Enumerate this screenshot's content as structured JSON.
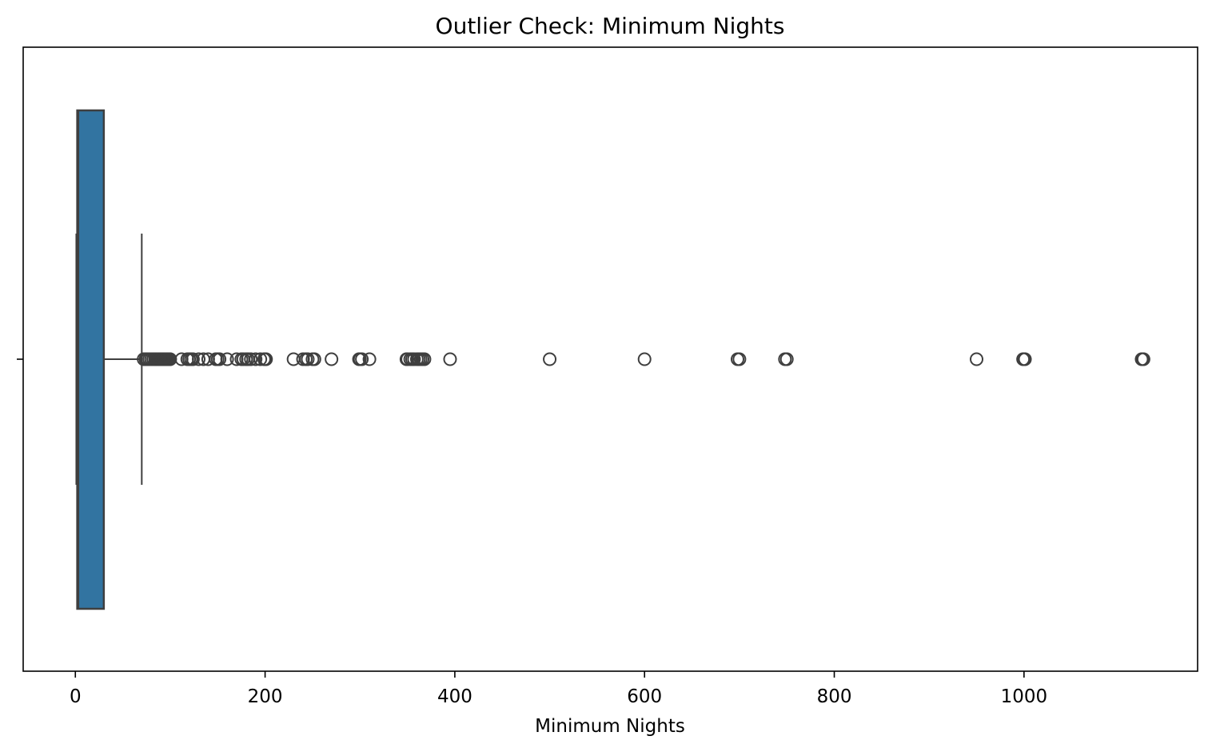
{
  "chart_data": {
    "type": "box",
    "orientation": "horizontal",
    "title": "Outlier Check: Minimum Nights",
    "xlabel": "Minimum Nights",
    "ylabel": "",
    "xlim": [
      -55,
      1183
    ],
    "xticks": [
      0,
      200,
      400,
      600,
      800,
      1000
    ],
    "xtick_labels": [
      "0",
      "200",
      "400",
      "600",
      "800",
      "1000"
    ],
    "grid": false,
    "colors": {
      "box_fill": "#3274a1",
      "box_edge": "#3f3f3f",
      "outlier_edge": "#3f3f3f"
    },
    "box": {
      "whisker_low": 1,
      "q1": 2,
      "median": 3,
      "q3": 30,
      "whisker_high": 70
    },
    "outliers": [
      72,
      74,
      75,
      76,
      78,
      80,
      82,
      84,
      85,
      86,
      88,
      89,
      90,
      91,
      92,
      93,
      94,
      95,
      96,
      97,
      98,
      99,
      100,
      112,
      118,
      120,
      122,
      124,
      130,
      135,
      140,
      148,
      150,
      152,
      160,
      170,
      175,
      177,
      180,
      182,
      185,
      190,
      195,
      199,
      200,
      201,
      230,
      240,
      243,
      245,
      250,
      252,
      270,
      299,
      300,
      302,
      310,
      349,
      350,
      353,
      355,
      357,
      360,
      362,
      364,
      366,
      368,
      395,
      500,
      600,
      698,
      700,
      748,
      750,
      950,
      999,
      1000,
      1001,
      1124,
      1125,
      1126
    ]
  }
}
